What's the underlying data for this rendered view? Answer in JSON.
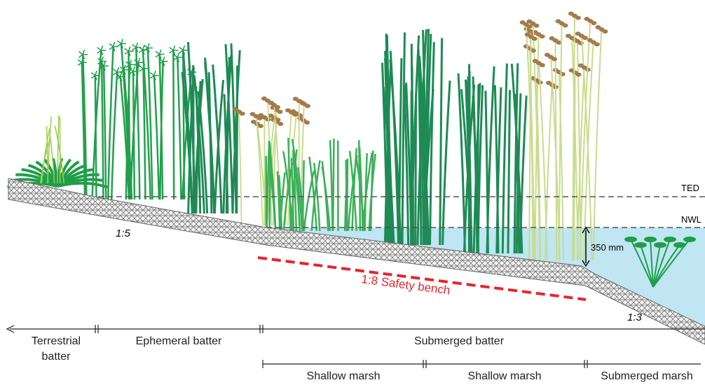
{
  "levels": {
    "ted": "TED",
    "nwl": "NWL",
    "depth": "350 mm"
  },
  "slopes": [
    "1:5",
    "1:3"
  ],
  "safety_bench": "1:8 Safety bench",
  "zones": [
    "Terrestrial batter",
    "Ephemeral batter",
    "Submerged batter"
  ],
  "sub_zones": [
    "Shallow marsh",
    "Shallow marsh",
    "Submerged marsh"
  ]
}
